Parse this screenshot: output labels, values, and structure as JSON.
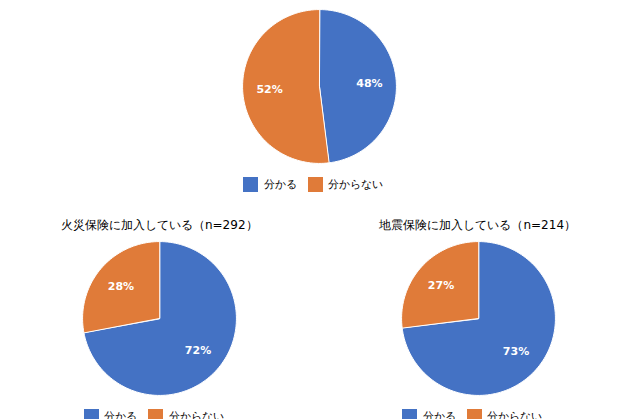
{
  "chart_data": [
    {
      "type": "pie",
      "categories": [
        "分かる",
        "分からない"
      ],
      "values": [
        48,
        52
      ],
      "value_labels": [
        "48%",
        "52%"
      ],
      "colors": [
        "#4472c4",
        "#e07b39"
      ],
      "data_labels": true,
      "legend": "bottom"
    },
    {
      "type": "pie",
      "title": "火災保険に加入している（n=292）",
      "categories": [
        "分かる",
        "分からない"
      ],
      "values": [
        72,
        28
      ],
      "value_labels": [
        "72%",
        "28%"
      ],
      "colors": [
        "#4472c4",
        "#e07b39"
      ],
      "data_labels": true,
      "legend": "bottom"
    },
    {
      "type": "pie",
      "title": "地震保険に加入している（n=214）",
      "categories": [
        "分かる",
        "分からない"
      ],
      "values": [
        73,
        27
      ],
      "value_labels": [
        "73%",
        "27%"
      ],
      "colors": [
        "#4472c4",
        "#e07b39"
      ],
      "data_labels": true,
      "legend": "bottom"
    }
  ]
}
